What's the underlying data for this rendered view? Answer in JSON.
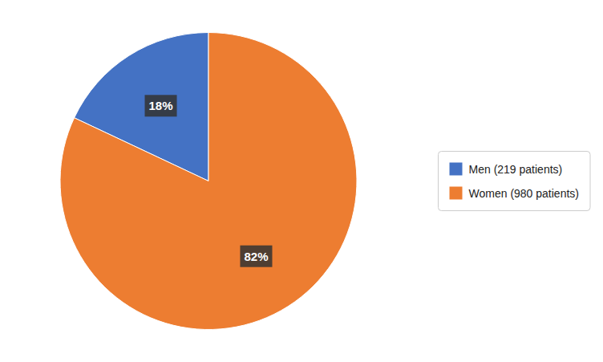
{
  "chart_data": {
    "type": "pie",
    "categories": [
      "Men (219 patients)",
      "Women (980 patients)"
    ],
    "values": [
      18,
      82
    ],
    "value_labels": [
      "18%",
      "82%"
    ],
    "colors": [
      "#4472C4",
      "#ED7D31"
    ],
    "data_labels": true,
    "legend": "right"
  }
}
